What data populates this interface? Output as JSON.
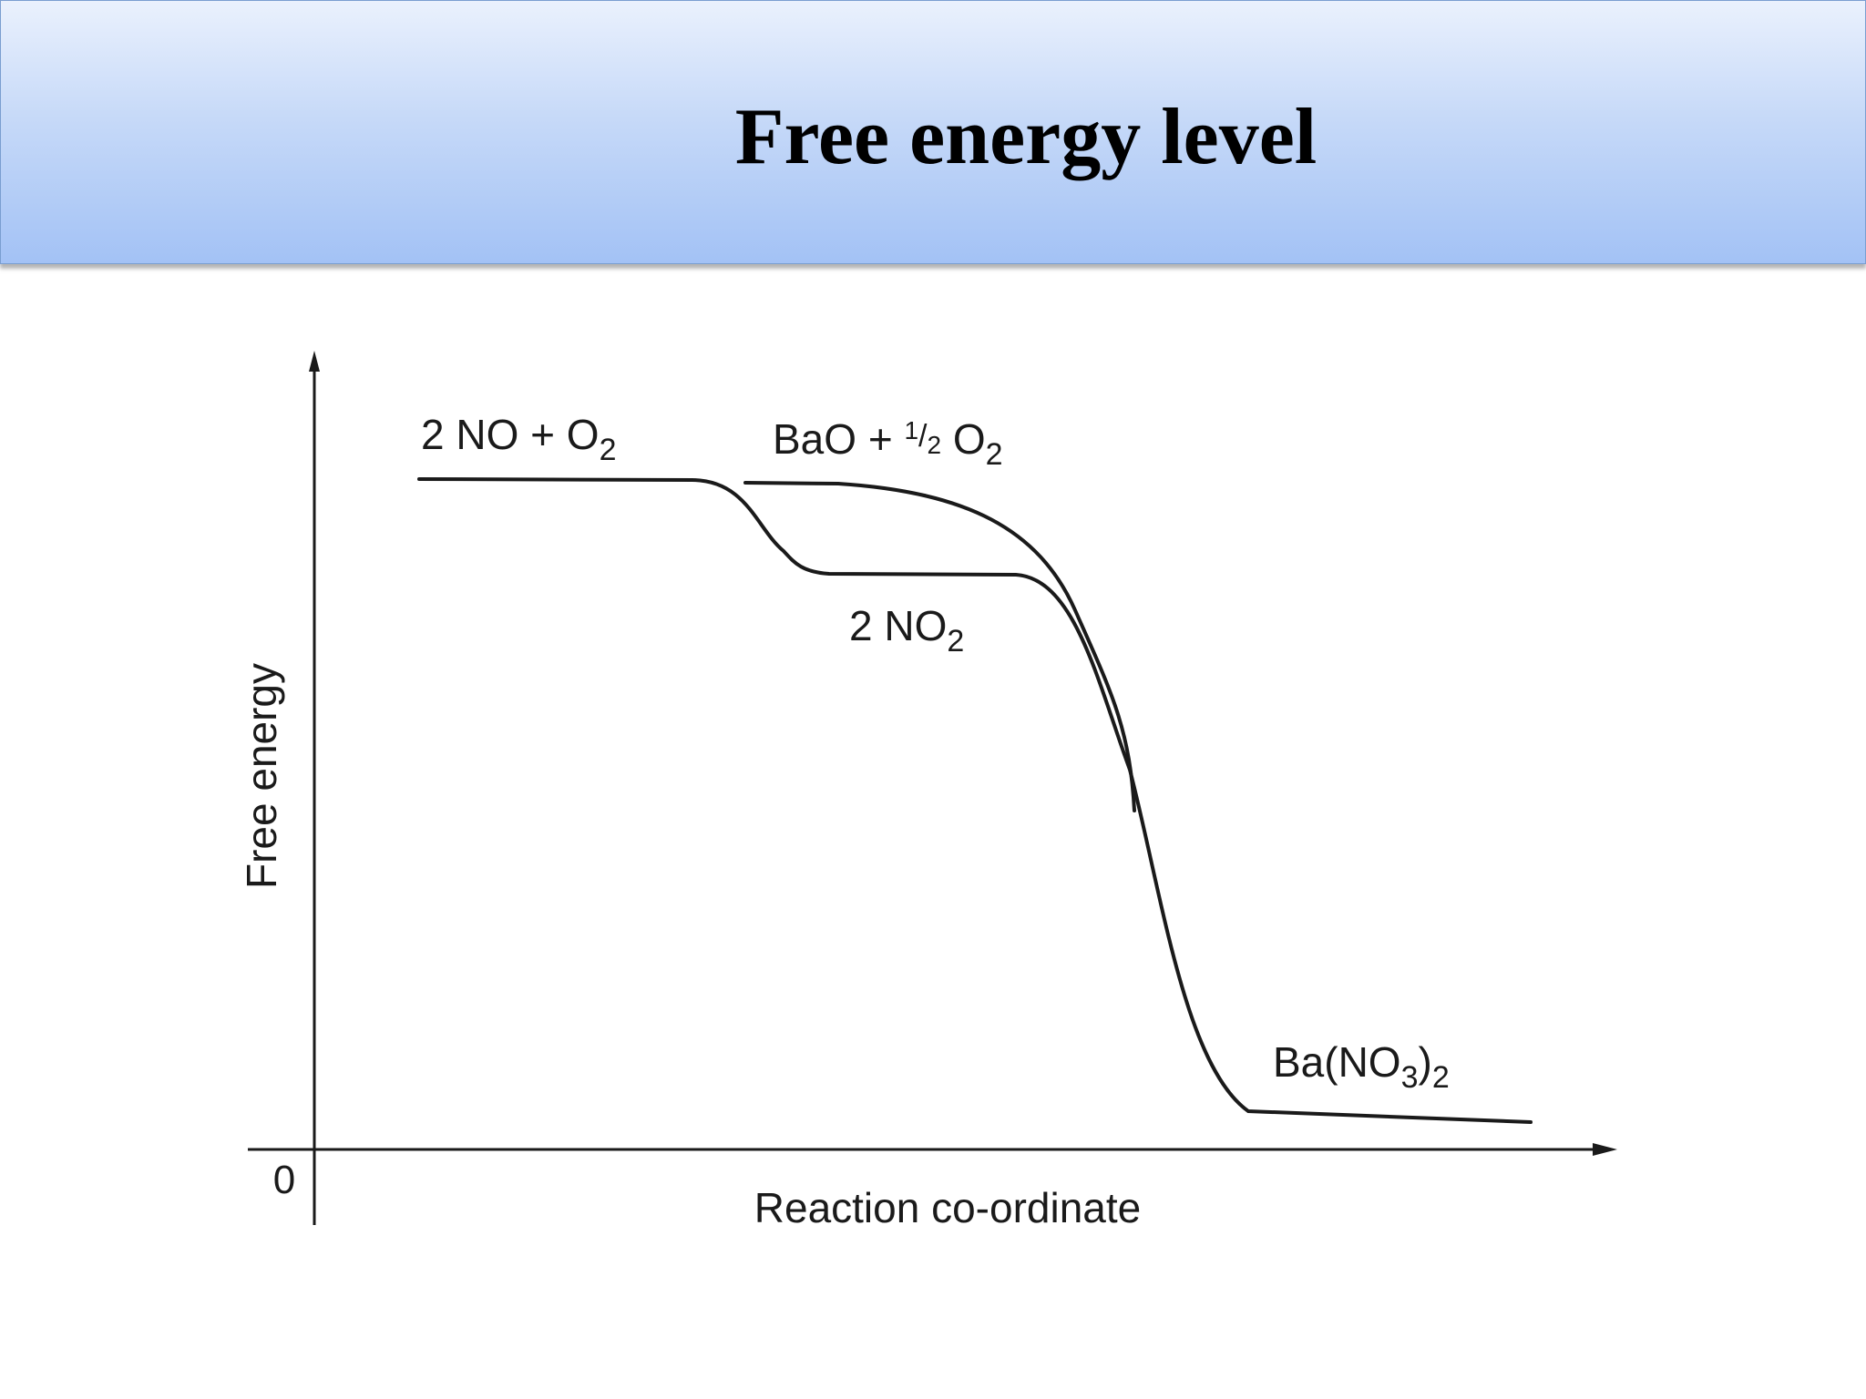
{
  "slide": {
    "title": "Free energy level"
  },
  "diagram": {
    "y_axis_label": "Free energy",
    "x_axis_label": "Reaction co-ordinate",
    "origin_label": "0",
    "states": {
      "reactants_no": {
        "main": "2 NO + O",
        "sub": "2"
      },
      "reactants_bao": {
        "main": "BaO + ",
        "frac_num": "1",
        "frac_den": "2",
        "o2_main": " O",
        "o2_sub": "2"
      },
      "intermediate": {
        "main": "2 NO",
        "sub": "2"
      },
      "product": {
        "main": "Ba(NO",
        "sub1": "3",
        "close": ")",
        "sub2": "2"
      }
    },
    "colors": {
      "line": "#1a1a1a",
      "title_bar_top": "#eaf1fd",
      "title_bar_bottom": "#a3c2f5"
    }
  }
}
